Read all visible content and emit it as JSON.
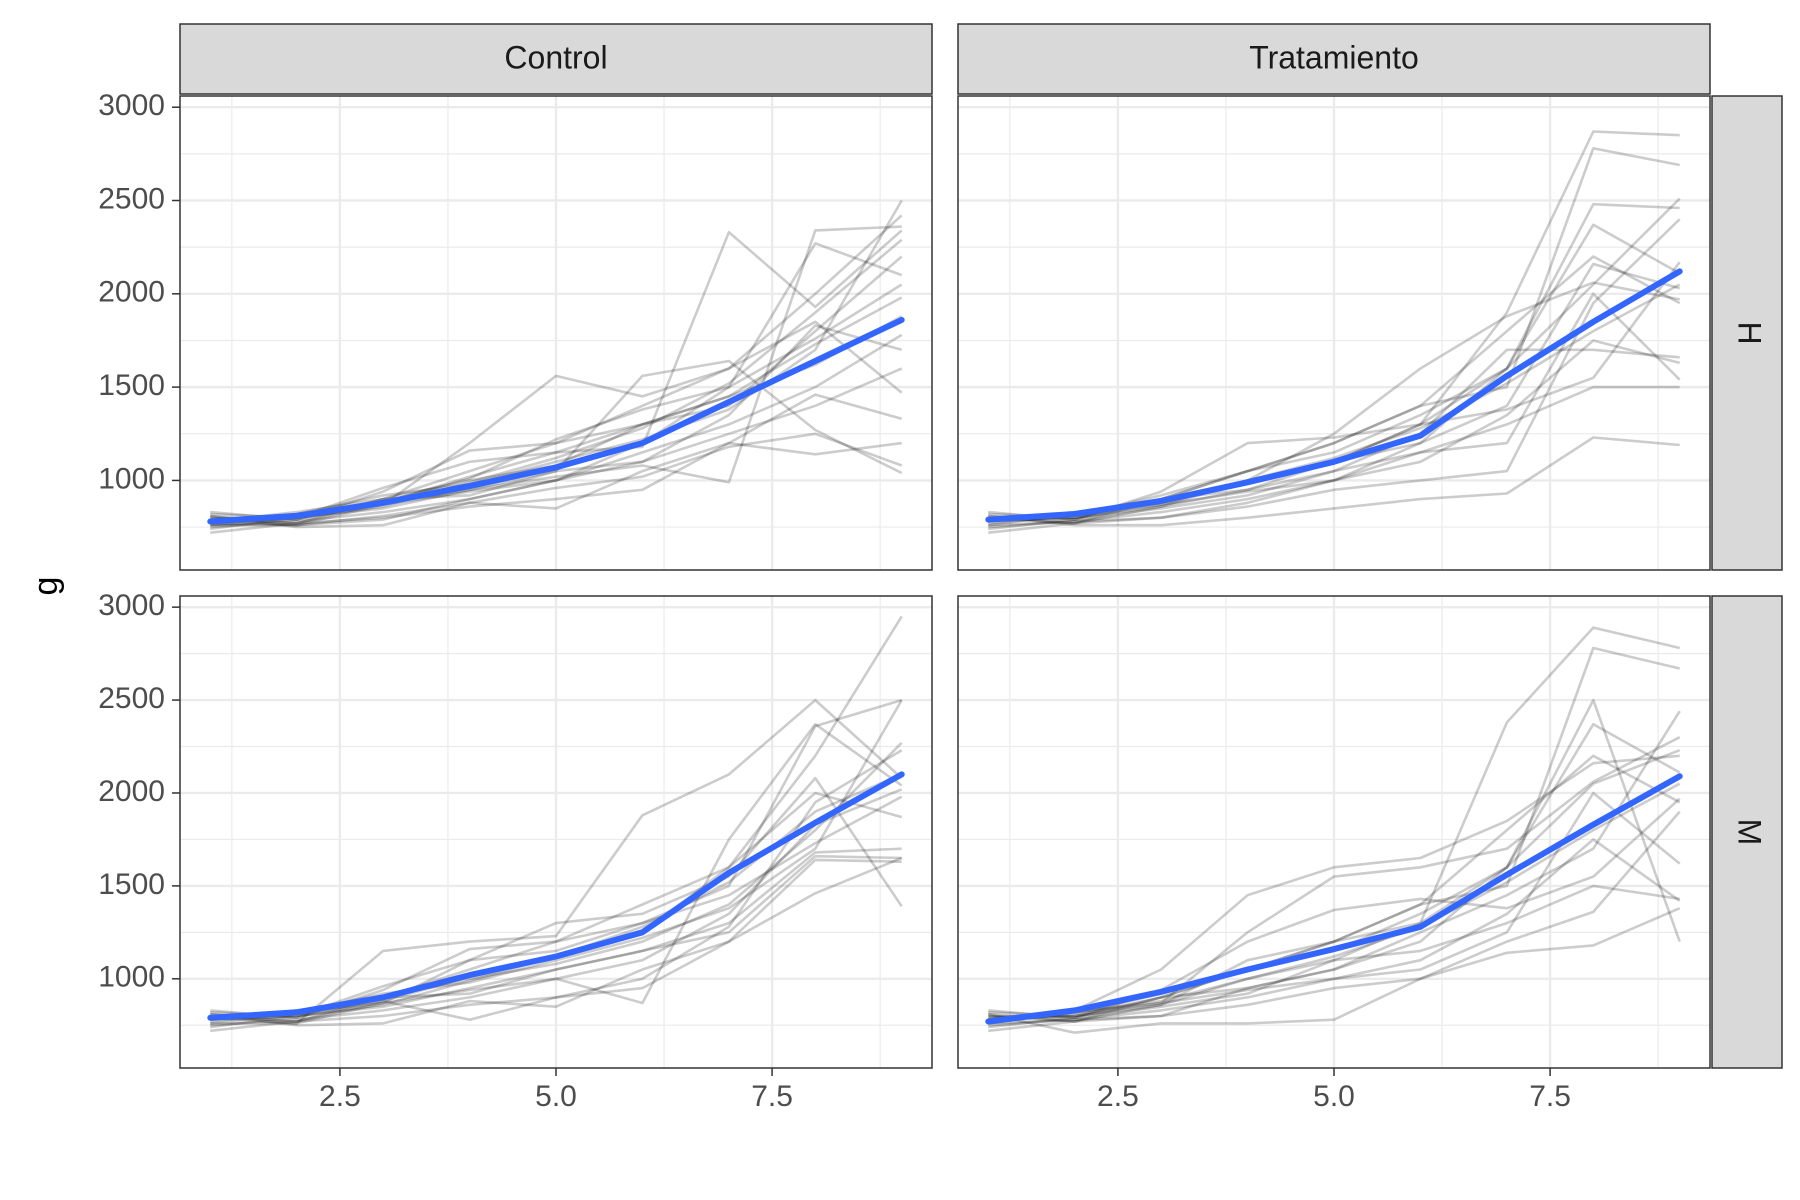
{
  "chart_data": {
    "type": "line",
    "facet_cols": [
      "Control",
      "Tratamiento"
    ],
    "facet_rows": [
      "H",
      "M"
    ],
    "xlabel": "",
    "ylabel": "g",
    "xlim": [
      0.65,
      9.35
    ],
    "ylim": [
      520,
      3060
    ],
    "x_ticks": [
      "2.5",
      "5.0",
      "7.5"
    ],
    "x_tick_values": [
      2.5,
      5.0,
      7.5
    ],
    "y_ticks": [
      "1000",
      "1500",
      "2000",
      "2500",
      "3000"
    ],
    "y_tick_values": [
      1000,
      1500,
      2000,
      2500,
      3000
    ],
    "grid": true,
    "colors": {
      "trend": "#3366FF",
      "individual": "#000000",
      "strip_fill": "#d9d9d9",
      "grid": "#ebebeb",
      "panel_border": "#333333"
    },
    "x": [
      1,
      2,
      3,
      4,
      5,
      6,
      7,
      8,
      9
    ],
    "panels": [
      {
        "col": "Control",
        "row": "H",
        "trend": [
          780,
          810,
          880,
          970,
          1070,
          1200,
          1420,
          1640,
          1860
        ],
        "individuals": [
          [
            800,
            770,
            880,
            1010,
            1220,
            1380,
            1500,
            1760,
            2050
          ],
          [
            760,
            760,
            790,
            900,
            1000,
            1150,
            1300,
            1500,
            1780
          ],
          [
            820,
            800,
            960,
            1100,
            1150,
            1180,
            2330,
            1930,
            2340
          ],
          [
            740,
            800,
            850,
            950,
            1050,
            1100,
            1250,
            1400,
            1600
          ],
          [
            780,
            830,
            900,
            1000,
            1080,
            1300,
            1400,
            1800,
            2200
          ],
          [
            810,
            750,
            760,
            880,
            850,
            1050,
            1200,
            1140,
            1200
          ],
          [
            770,
            820,
            920,
            980,
            1100,
            1220,
            1380,
            1700,
            2500
          ],
          [
            790,
            760,
            870,
            1200,
            1560,
            1450,
            1600,
            1850,
            1470
          ],
          [
            750,
            780,
            830,
            900,
            1000,
            1200,
            1500,
            2270,
            2100
          ],
          [
            830,
            790,
            900,
            920,
            1050,
            1560,
            1640,
            1270,
            1040
          ],
          [
            760,
            810,
            880,
            950,
            1020,
            1080,
            990,
            2340,
            2360
          ],
          [
            800,
            790,
            940,
            1160,
            1200,
            1300,
            1450,
            1730,
            1980
          ],
          [
            720,
            770,
            800,
            860,
            900,
            950,
            1200,
            1460,
            1330
          ],
          [
            780,
            800,
            860,
            990,
            1120,
            1280,
            1520,
            1900,
            2290
          ],
          [
            810,
            770,
            900,
            1050,
            1200,
            1400,
            1600,
            2000,
            2420
          ],
          [
            790,
            820,
            870,
            940,
            1000,
            1100,
            1350,
            1830,
            1700
          ],
          [
            770,
            760,
            810,
            880,
            960,
            1020,
            1180,
            1250,
            1080
          ],
          [
            760,
            790,
            880,
            1020,
            1150,
            1300,
            1450,
            1620,
            1880
          ]
        ]
      },
      {
        "col": "Tratamiento",
        "row": "H",
        "trend": [
          790,
          820,
          890,
          990,
          1100,
          1240,
          1560,
          1850,
          2120
        ],
        "individuals": [
          [
            800,
            770,
            860,
            950,
            1100,
            1300,
            1900,
            2870,
            2850
          ],
          [
            760,
            780,
            800,
            880,
            1000,
            1200,
            1600,
            2480,
            2460
          ],
          [
            820,
            800,
            900,
            1050,
            1200,
            1400,
            1500,
            2780,
            2690
          ],
          [
            740,
            790,
            850,
            920,
            1050,
            1150,
            1300,
            1500,
            1500
          ],
          [
            780,
            830,
            900,
            1000,
            1100,
            1200,
            1400,
            2160,
            2030
          ],
          [
            810,
            760,
            760,
            800,
            850,
            900,
            930,
            1230,
            1190
          ],
          [
            770,
            810,
            920,
            1050,
            1150,
            1350,
            1600,
            2370,
            2110
          ],
          [
            790,
            800,
            870,
            1000,
            1250,
            1600,
            1880,
            2060,
            1970
          ],
          [
            750,
            780,
            830,
            900,
            1000,
            1150,
            1200,
            2000,
            1540
          ],
          [
            830,
            790,
            900,
            950,
            1050,
            1250,
            1700,
            1700,
            1660
          ],
          [
            760,
            820,
            880,
            1000,
            1100,
            1300,
            1600,
            2050,
            2510
          ],
          [
            800,
            790,
            940,
            1200,
            1230,
            1300,
            1380,
            1550,
            2170
          ],
          [
            720,
            770,
            800,
            860,
            950,
            1000,
            1050,
            1950,
            2400
          ],
          [
            780,
            800,
            860,
            1000,
            1120,
            1280,
            1520,
            1800,
            2050
          ],
          [
            810,
            770,
            900,
            1050,
            1200,
            1400,
            1800,
            2200,
            1950
          ],
          [
            790,
            820,
            870,
            940,
            1000,
            1100,
            1350,
            1750,
            1630
          ]
        ]
      },
      {
        "col": "Control",
        "row": "M",
        "trend": [
          790,
          820,
          900,
          1020,
          1120,
          1250,
          1570,
          1840,
          2100
        ],
        "individuals": [
          [
            800,
            770,
            880,
            1010,
            1120,
            1250,
            1600,
            2200,
            2950
          ],
          [
            760,
            760,
            1150,
            1200,
            1230,
            1880,
            2100,
            2500,
            2080
          ],
          [
            820,
            800,
            960,
            1100,
            1150,
            1300,
            1500,
            2360,
            2500
          ],
          [
            740,
            800,
            850,
            950,
            1050,
            1150,
            1250,
            1660,
            1650
          ],
          [
            780,
            830,
            900,
            1000,
            1080,
            1200,
            1400,
            1800,
            2270
          ],
          [
            810,
            750,
            760,
            880,
            850,
            1050,
            1200,
            1640,
            1630
          ],
          [
            770,
            820,
            920,
            980,
            1100,
            1220,
            1380,
            1700,
            2500
          ],
          [
            790,
            760,
            870,
            1100,
            1300,
            1350,
            1550,
            2080,
            1390
          ],
          [
            750,
            780,
            830,
            900,
            1000,
            870,
            1750,
            2370,
            2040
          ],
          [
            830,
            790,
            900,
            920,
            1050,
            1150,
            1300,
            1680,
            1700
          ],
          [
            760,
            810,
            880,
            780,
            900,
            1000,
            1280,
            1950,
            2230
          ],
          [
            800,
            790,
            940,
            1160,
            1200,
            1300,
            1450,
            1730,
            1980
          ],
          [
            720,
            770,
            800,
            860,
            900,
            950,
            1200,
            1460,
            1650
          ],
          [
            780,
            800,
            860,
            990,
            1120,
            1280,
            1520,
            1900,
            2100
          ],
          [
            810,
            770,
            900,
            1050,
            1200,
            1400,
            1600,
            2000,
            1870
          ],
          [
            790,
            820,
            870,
            940,
            1000,
            1100,
            1350,
            1830,
            2020
          ]
        ]
      },
      {
        "col": "Tratamiento",
        "row": "M",
        "trend": [
          770,
          830,
          930,
          1050,
          1160,
          1280,
          1560,
          1830,
          2090
        ],
        "individuals": [
          [
            800,
            770,
            860,
            1100,
            1200,
            1300,
            2380,
            2890,
            2780
          ],
          [
            760,
            780,
            800,
            950,
            1050,
            1200,
            1600,
            2500,
            1200
          ],
          [
            820,
            800,
            900,
            1050,
            1200,
            1400,
            1500,
            2780,
            2670
          ],
          [
            740,
            790,
            850,
            920,
            1100,
            1150,
            1300,
            1500,
            1430
          ],
          [
            780,
            830,
            1050,
            1450,
            1600,
            1650,
            1850,
            2160,
            2200
          ],
          [
            810,
            710,
            760,
            760,
            780,
            1000,
            1140,
            1180,
            1380
          ],
          [
            770,
            810,
            920,
            1050,
            1150,
            1350,
            1600,
            2370,
            2110
          ],
          [
            790,
            800,
            870,
            1250,
            1550,
            1600,
            1700,
            2060,
            2300
          ],
          [
            750,
            780,
            830,
            900,
            1000,
            1050,
            1250,
            2000,
            1620
          ],
          [
            830,
            790,
            900,
            950,
            1050,
            1250,
            1450,
            1700,
            2440
          ],
          [
            760,
            820,
            880,
            1000,
            1100,
            1300,
            1600,
            2050,
            2230
          ],
          [
            800,
            790,
            940,
            1200,
            1370,
            1430,
            1380,
            1550,
            1970
          ],
          [
            720,
            770,
            800,
            860,
            950,
            1000,
            1200,
            1360,
            1900
          ],
          [
            780,
            800,
            860,
            1000,
            1120,
            1280,
            1520,
            1800,
            2050
          ],
          [
            810,
            770,
            900,
            1050,
            1200,
            1400,
            1800,
            2200,
            1950
          ],
          [
            790,
            820,
            870,
            940,
            1000,
            1100,
            1350,
            1750,
            1420
          ]
        ]
      }
    ]
  }
}
